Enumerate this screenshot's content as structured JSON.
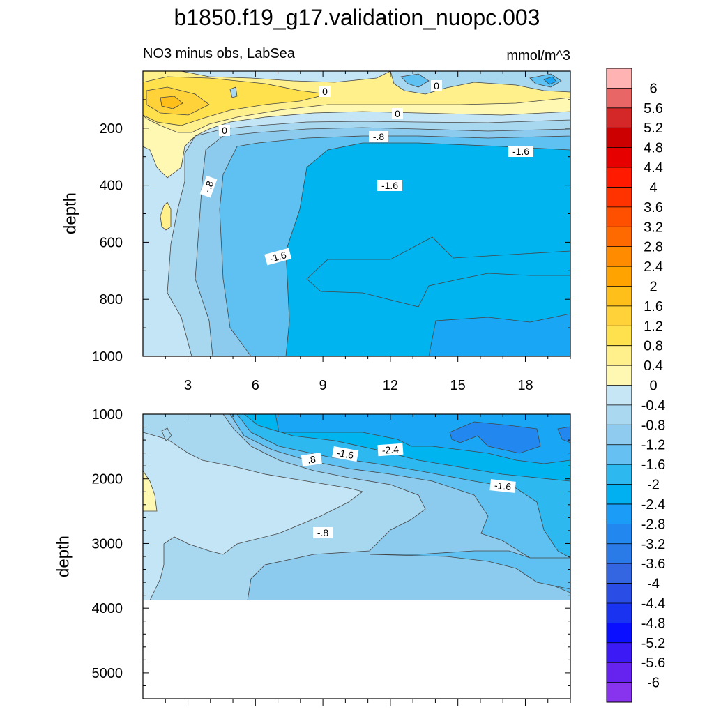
{
  "title": "b1850.f19_g17.validation_nuopc.003",
  "subtitle_left": "NO3 minus obs, LabSea",
  "subtitle_right": "mmol/m^3",
  "colorbar": {
    "labels": [
      "6",
      "5.6",
      "5.2",
      "4.8",
      "4.4",
      "4",
      "3.6",
      "3.2",
      "2.8",
      "2.4",
      "2",
      "1.6",
      "1.2",
      "0.8",
      "0.4",
      "0",
      "-0.4",
      "-0.8",
      "-1.2",
      "-1.6",
      "-2",
      "-2.4",
      "-2.8",
      "-3.2",
      "-3.6",
      "-4",
      "-4.4",
      "-4.8",
      "-5.2",
      "-5.6",
      "-6"
    ],
    "colors": [
      "#ffb3b3",
      "#e86666",
      "#d42828",
      "#cc0000",
      "#e60000",
      "#ff1a00",
      "#ff3300",
      "#ff5000",
      "#ff6a00",
      "#ff8c00",
      "#ffa300",
      "#ffbf1a",
      "#ffd23a",
      "#ffe14d",
      "#fff08c",
      "#fff8b3",
      "#c7e6f5",
      "#aad8f0",
      "#8ecbee",
      "#66c0f2",
      "#2eb8f0",
      "#00b0f0",
      "#1a9cf7",
      "#2288f0",
      "#2a7ae8",
      "#3366e0",
      "#2a4de6",
      "#1a33f0",
      "#0a10ff",
      "#3b1af5",
      "#6622ee",
      "#8833ee"
    ]
  },
  "chart_data": [
    {
      "type": "contour",
      "panel": "upper",
      "ylabel": "depth",
      "xlabel": "",
      "xlim": [
        1,
        20
      ],
      "ylim": [
        1000,
        0
      ],
      "xticks": [
        "3",
        "6",
        "9",
        "12",
        "15",
        "18"
      ],
      "yticks": [
        "200",
        "400",
        "600",
        "800",
        "1000"
      ],
      "contour_labels": [
        "0",
        "0",
        "0",
        "0",
        "-.8",
        "-.8",
        "-1.6",
        "-1.6",
        "-1.6"
      ]
    },
    {
      "type": "contour",
      "panel": "lower",
      "ylabel": "depth",
      "xlabel": "",
      "xlim": [
        1,
        20
      ],
      "ylim": [
        5400,
        1000
      ],
      "missing_below_depth": 3870,
      "yticks": [
        "1000",
        "2000",
        "3000",
        "4000",
        "5000"
      ],
      "contour_labels": [
        ".8",
        "-1.6",
        "-2.4",
        "-1.6",
        "-.8"
      ]
    }
  ]
}
